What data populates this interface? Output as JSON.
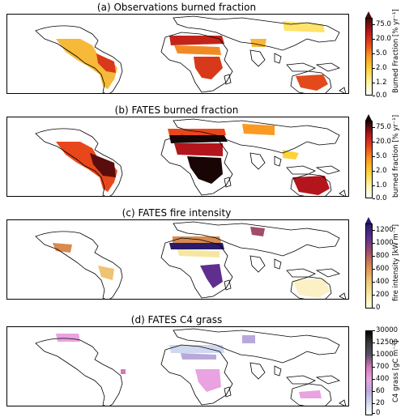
{
  "panels": [
    {
      "title": "(a) Observations burned fraction",
      "colorbar_label": "Burned Fraction [% yr⁻¹]",
      "ticks": [
        "75.0",
        "20.0",
        "5.0",
        "2.0",
        "1.2",
        "0.0"
      ],
      "colormap": [
        "#ffffff",
        "#fff3a0",
        "#ffd23a",
        "#fb9a21",
        "#e8471b",
        "#b3151d",
        "#4a0a0a"
      ],
      "extend": "max"
    },
    {
      "title": "(b) FATES burned fraction",
      "colorbar_label": "burned fraction [% yr⁻¹]",
      "ticks": [
        "75.0",
        "20.0",
        "5.0",
        "2.0",
        "1.0",
        "0.0"
      ],
      "colormap": [
        "#ffffff",
        "#fff3a0",
        "#ffd23a",
        "#fb9a21",
        "#e8471b",
        "#b3151d",
        "#1a0505"
      ],
      "extend": "max"
    },
    {
      "title": "(c) FATES fire intensity",
      "colorbar_label": "fire intensity [kW m⁻¹]",
      "ticks": [
        "1200",
        "1000",
        "800",
        "600",
        "400",
        "200",
        "0"
      ],
      "colormap": [
        "#ffffe0",
        "#f5e7a3",
        "#eec374",
        "#d98a4e",
        "#a24c6b",
        "#5e2f8f",
        "#2a1b6b"
      ],
      "extend": "max"
    },
    {
      "title": "(d) FATES C4 grass",
      "colorbar_label": "C4 grass [gC m⁻²]",
      "ticks": [
        "30000",
        "12500",
        "1000",
        "700",
        "400",
        "60",
        "20",
        "0"
      ],
      "colormap": [
        "#ffffff",
        "#cfd8ee",
        "#b9a8dc",
        "#e8a3e0",
        "#d277b9",
        "#5a4f6a",
        "#3a3a3a",
        "#000000"
      ],
      "extend": "none"
    }
  ]
}
